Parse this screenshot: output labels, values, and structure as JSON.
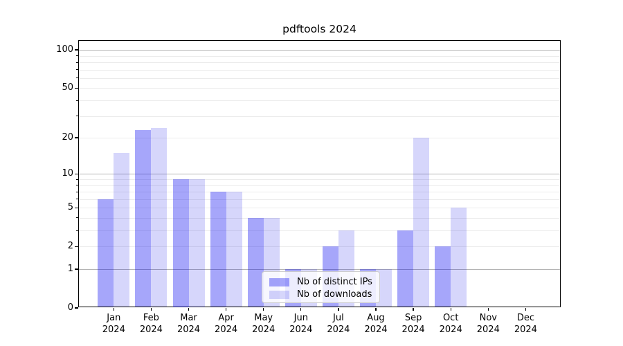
{
  "chart_data": {
    "type": "bar",
    "title": "pdftools 2024",
    "categories": [
      "Jan",
      "Feb",
      "Mar",
      "Apr",
      "May",
      "Jun",
      "Jul",
      "Aug",
      "Sep",
      "Oct",
      "Nov",
      "Dec"
    ],
    "x_tick_second_line": "2024",
    "series": [
      {
        "name": "Nb of distinct IPs",
        "color": "#0000f059",
        "solid_color": "#a7a7f6",
        "values": [
          6,
          23,
          9,
          7,
          4,
          1,
          2,
          1,
          3,
          2,
          0,
          0
        ]
      },
      {
        "name": "Nb of downloads",
        "color": "#0000e629",
        "solid_color": "#d8d8f8",
        "values": [
          15,
          24,
          9,
          7,
          4,
          1,
          3,
          1,
          20,
          5,
          0,
          0
        ]
      }
    ],
    "y_axis": {
      "scale": "log1p",
      "tick_values": [
        0,
        1,
        2,
        5,
        10,
        20,
        50,
        100
      ],
      "tick_labels": [
        "0",
        "1",
        "2",
        "5",
        "10",
        "20",
        "50",
        "100"
      ],
      "range": [
        0,
        100
      ]
    },
    "grid": {
      "major_values": [
        1,
        10,
        100
      ],
      "minor_values": [
        2,
        3,
        4,
        5,
        6,
        7,
        8,
        9,
        20,
        30,
        40,
        50,
        60,
        70,
        80,
        90
      ],
      "major_color": "#b4b4b4",
      "minor_color": "#ebebeb",
      "on": true
    },
    "legend": {
      "position": "lower-center",
      "entries": [
        "Nb of distinct IPs",
        "Nb of downloads"
      ]
    }
  }
}
